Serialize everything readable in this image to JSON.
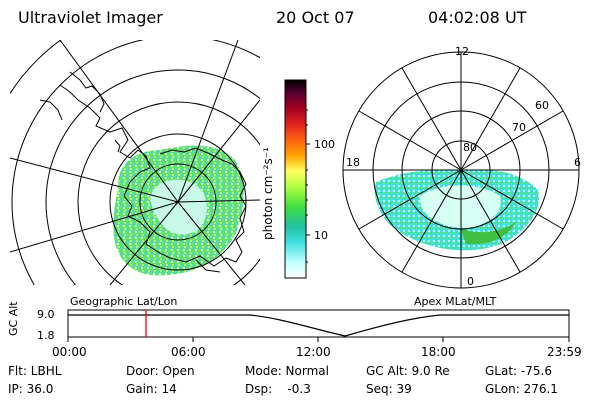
{
  "header": {
    "title": "Ultraviolet Imager",
    "date": "20 Oct 07",
    "time": "04:02:08 UT"
  },
  "colorbar": {
    "unit_label": "photon cm⁻²s⁻¹",
    "ticks": [
      "100",
      "10"
    ]
  },
  "polar_plot": {
    "lat_labels": [
      "80",
      "70",
      "60"
    ],
    "mlt_labels": {
      "top": "12",
      "left": "18",
      "right": "6",
      "bottom": "0"
    }
  },
  "map_captions": {
    "left": "Geographic Lat/Lon",
    "right": "Apex MLat/MLT"
  },
  "timeline": {
    "axis_label": "GC Alt",
    "y_ticks": [
      "9.0",
      "1.8"
    ],
    "x_ticks": [
      "00:00",
      "06:00",
      "12:00",
      "18:00",
      "23:59"
    ],
    "marker_time": "04:02"
  },
  "footer": {
    "flt": "Flt: LBHL",
    "ip": "IP: 36.0",
    "door": "Door: Open",
    "gain": "Gain: 14",
    "mode": "Mode: Normal",
    "dsp": "Dsp:    -0.3",
    "gcalt": "GC Alt: 9.0 Re",
    "seq": "Seq: 39",
    "glat": "GLat: -75.6",
    "glon": "GLon: 276.1"
  },
  "colors": {
    "marker": "#ff0000",
    "colorbar": [
      "#000000",
      "#2a0030",
      "#5a0030",
      "#a00020",
      "#e02020",
      "#ff6010",
      "#ffa000",
      "#f0d020",
      "#ffff60",
      "#b0ff40",
      "#40e040",
      "#20c0a0",
      "#40e0e0",
      "#c0ffff",
      "#ffffff"
    ]
  }
}
